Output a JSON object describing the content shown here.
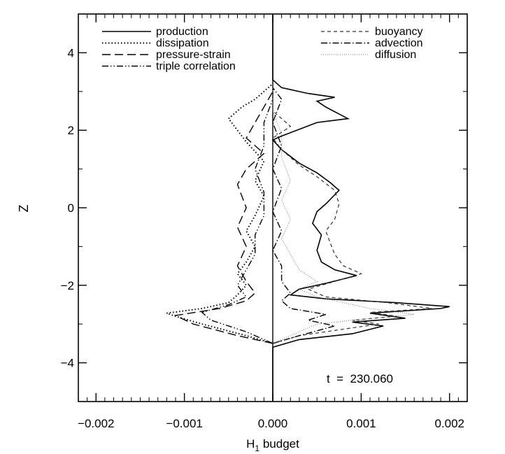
{
  "chart_data": {
    "type": "line",
    "title": "",
    "xlabel": "H",
    "xlabel_sub": "1",
    "xlabel_rest": " budget",
    "ylabel": "Z",
    "xlim": [
      -0.0022,
      0.0022
    ],
    "ylim": [
      -5,
      5
    ],
    "x_ticks": [
      -0.002,
      -0.001,
      0.0,
      0.001,
      0.002
    ],
    "x_tick_labels": [
      "−0.002",
      "−0.001",
      "0.000",
      "0.001",
      "0.002"
    ],
    "y_ticks": [
      -4,
      -2,
      0,
      2,
      4
    ],
    "y_tick_labels": [
      "−4",
      "−2",
      "0",
      "2",
      "4"
    ],
    "grid": false,
    "legend_placement": "top, two columns",
    "annotation": "t  =  230.060",
    "series": [
      {
        "name": "production",
        "style": "solid",
        "points": [
          [
            0.0,
            -5.0
          ],
          [
            0.0,
            -3.6
          ],
          [
            0.0003,
            -3.4
          ],
          [
            0.0009,
            -3.25
          ],
          [
            0.00125,
            -3.05
          ],
          [
            0.0009,
            -2.95
          ],
          [
            0.0015,
            -2.85
          ],
          [
            0.0011,
            -2.72
          ],
          [
            0.0019,
            -2.6
          ],
          [
            0.002,
            -2.55
          ],
          [
            0.0014,
            -2.45
          ],
          [
            0.0006,
            -2.35
          ],
          [
            0.0002,
            -2.25
          ],
          [
            0.0003,
            -2.1
          ],
          [
            0.0006,
            -1.95
          ],
          [
            0.00095,
            -1.75
          ],
          [
            0.0007,
            -1.6
          ],
          [
            0.00055,
            -1.4
          ],
          [
            0.0005,
            -1.1
          ],
          [
            0.00055,
            -0.7
          ],
          [
            0.00045,
            -0.4
          ],
          [
            0.0005,
            -0.1
          ],
          [
            0.0006,
            0.1
          ],
          [
            0.00075,
            0.45
          ],
          [
            0.00065,
            0.65
          ],
          [
            0.0005,
            0.9
          ],
          [
            0.0003,
            1.15
          ],
          [
            0.0001,
            1.5
          ],
          [
            0.0,
            1.75
          ],
          [
            0.0001,
            1.85
          ],
          [
            0.0005,
            2.2
          ],
          [
            0.00085,
            2.3
          ],
          [
            0.0006,
            2.6
          ],
          [
            0.0005,
            2.75
          ],
          [
            0.0007,
            2.85
          ],
          [
            0.0004,
            2.95
          ],
          [
            0.0001,
            3.1
          ],
          [
            0.0,
            3.3
          ],
          [
            0.0,
            5.0
          ]
        ]
      },
      {
        "name": "dissipation",
        "style": "dotted",
        "points": [
          [
            0.0,
            -3.5
          ],
          [
            -0.0003,
            -3.3
          ],
          [
            -0.0008,
            -3.0
          ],
          [
            -0.0011,
            -2.8
          ],
          [
            -0.0012,
            -2.72
          ],
          [
            -0.0008,
            -2.6
          ],
          [
            -0.0005,
            -2.45
          ],
          [
            -0.0004,
            -2.25
          ],
          [
            -0.0003,
            -2.0
          ],
          [
            -0.0004,
            -1.7
          ],
          [
            -0.0003,
            -1.4
          ],
          [
            -0.0002,
            -1.0
          ],
          [
            -0.0003,
            -0.6
          ],
          [
            -0.0002,
            -0.2
          ],
          [
            -0.0001,
            0.3
          ],
          [
            -0.0002,
            0.7
          ],
          [
            -0.0001,
            1.2
          ],
          [
            -0.0003,
            1.7
          ],
          [
            -0.0004,
            2.0
          ],
          [
            -0.0005,
            2.3
          ],
          [
            -0.00035,
            2.6
          ],
          [
            -0.0002,
            2.8
          ],
          [
            0.0,
            3.2
          ]
        ]
      },
      {
        "name": "pressure-strain",
        "style": "longdash",
        "points": [
          [
            0.0,
            -3.5
          ],
          [
            -0.0004,
            -3.3
          ],
          [
            -0.0009,
            -3.0
          ],
          [
            -0.0011,
            -2.78
          ],
          [
            -0.0006,
            -2.6
          ],
          [
            -0.0003,
            -2.4
          ],
          [
            -0.0002,
            -2.2
          ],
          [
            -0.0003,
            -1.9
          ],
          [
            -0.0004,
            -1.5
          ],
          [
            -0.0003,
            -1.0
          ],
          [
            -0.0004,
            -0.5
          ],
          [
            -0.0003,
            0.0
          ],
          [
            -0.0004,
            0.6
          ],
          [
            -0.0003,
            1.0
          ],
          [
            -0.0001,
            1.4
          ],
          [
            -0.0003,
            1.8
          ],
          [
            -0.0002,
            2.2
          ],
          [
            -0.0001,
            2.6
          ],
          [
            0.0,
            3.0
          ]
        ]
      },
      {
        "name": "triple correlation",
        "style": "dashdotdot",
        "points": [
          [
            0.0,
            -3.5
          ],
          [
            -0.0003,
            -3.2
          ],
          [
            -0.0007,
            -2.9
          ],
          [
            -0.0008,
            -2.7
          ],
          [
            -0.0005,
            -2.5
          ],
          [
            -0.0003,
            -2.3
          ],
          [
            -0.0004,
            -2.0
          ],
          [
            -0.0003,
            -1.6
          ],
          [
            -0.0002,
            -1.2
          ],
          [
            -0.0002,
            -0.7
          ],
          [
            -0.0001,
            -0.2
          ],
          [
            -0.0001,
            0.4
          ],
          [
            -0.0002,
            1.0
          ],
          [
            -0.0001,
            1.6
          ],
          [
            -0.0001,
            2.2
          ],
          [
            0.0,
            2.8
          ],
          [
            0.0,
            3.1
          ]
        ]
      },
      {
        "name": "buoyancy",
        "style": "shortdash",
        "points": [
          [
            0.0,
            -3.5
          ],
          [
            0.0003,
            -3.3
          ],
          [
            0.0009,
            -3.1
          ],
          [
            0.0012,
            -3.0
          ],
          [
            0.0009,
            -2.9
          ],
          [
            0.0014,
            -2.8
          ],
          [
            0.0011,
            -2.7
          ],
          [
            0.0018,
            -2.6
          ],
          [
            0.0013,
            -2.45
          ],
          [
            0.0006,
            -2.3
          ],
          [
            0.0004,
            -2.1
          ],
          [
            0.0007,
            -1.9
          ],
          [
            0.001,
            -1.7
          ],
          [
            0.0008,
            -1.5
          ],
          [
            0.0007,
            -1.2
          ],
          [
            0.00065,
            -0.9
          ],
          [
            0.0006,
            -0.6
          ],
          [
            0.0007,
            -0.3
          ],
          [
            0.00075,
            0.1
          ],
          [
            0.0007,
            0.45
          ],
          [
            0.0005,
            0.8
          ],
          [
            0.0003,
            1.1
          ],
          [
            0.0001,
            1.5
          ],
          [
            0.0,
            1.8
          ],
          [
            0.0002,
            2.1
          ],
          [
            0.0,
            2.5
          ],
          [
            0.0,
            3.0
          ]
        ]
      },
      {
        "name": "advection",
        "style": "dashdot",
        "points": [
          [
            0.0,
            -3.5
          ],
          [
            0.0003,
            -3.3
          ],
          [
            0.0007,
            -3.05
          ],
          [
            0.0004,
            -2.9
          ],
          [
            0.0006,
            -2.75
          ],
          [
            0.0002,
            -2.6
          ],
          [
            0.0001,
            -2.4
          ],
          [
            0.0002,
            -2.2
          ],
          [
            0.0001,
            -1.9
          ],
          [
            0.0001,
            -1.5
          ],
          [
            0.0,
            -1.1
          ],
          [
            0.0001,
            -0.6
          ],
          [
            0.0,
            -0.1
          ],
          [
            0.0001,
            0.5
          ],
          [
            0.0,
            1.0
          ],
          [
            0.0001,
            1.6
          ],
          [
            0.0,
            2.2
          ],
          [
            0.0001,
            2.8
          ],
          [
            0.0,
            3.1
          ]
        ]
      },
      {
        "name": "diffusion",
        "style": "dotted-thin",
        "points": [
          [
            0.0,
            -3.5
          ],
          [
            0.0002,
            -3.3
          ],
          [
            0.0005,
            -3.0
          ],
          [
            0.0009,
            -2.9
          ],
          [
            0.0016,
            -2.75
          ],
          [
            0.0011,
            -2.6
          ],
          [
            0.0008,
            -2.45
          ],
          [
            0.0005,
            -2.3
          ],
          [
            0.0003,
            -2.1
          ],
          [
            0.0005,
            -1.9
          ],
          [
            0.0003,
            -1.6
          ],
          [
            0.0002,
            -1.2
          ],
          [
            0.0001,
            -0.8
          ],
          [
            0.0002,
            -0.3
          ],
          [
            0.0001,
            0.2
          ],
          [
            0.0002,
            0.7
          ],
          [
            0.0001,
            1.3
          ],
          [
            0.0001,
            1.9
          ],
          [
            0.0,
            2.5
          ],
          [
            0.0,
            3.1
          ]
        ]
      }
    ]
  }
}
